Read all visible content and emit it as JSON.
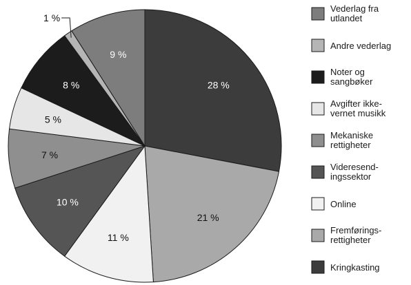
{
  "chart_data": {
    "type": "pie",
    "title": "",
    "slices": [
      {
        "label": "Kringkasting",
        "value": 28,
        "value_label": "28 %",
        "color": "#3c3c3c",
        "text_color": "#ffffff",
        "legend_lines": [
          "Kringkasting"
        ]
      },
      {
        "label": "Fremføringsrettigheter",
        "value": 21,
        "value_label": "21 %",
        "color": "#a9a9a9",
        "text_color": "#111111",
        "legend_lines": [
          "Fremførings-",
          "rettigheter"
        ]
      },
      {
        "label": "Online",
        "value": 11,
        "value_label": "11 %",
        "color": "#f1f1f1",
        "text_color": "#111111",
        "legend_lines": [
          "Online"
        ]
      },
      {
        "label": "Videresendingssektor",
        "value": 10,
        "value_label": "10 %",
        "color": "#555555",
        "text_color": "#ffffff",
        "legend_lines": [
          "Videresend-",
          "ingssektor"
        ]
      },
      {
        "label": "Mekaniske rettigheter",
        "value": 7,
        "value_label": "7 %",
        "color": "#8f8f8f",
        "text_color": "#111111",
        "legend_lines": [
          "Mekaniske",
          "rettigheter"
        ]
      },
      {
        "label": "Avgifter ikke-vernet musikk",
        "value": 5,
        "value_label": "5 %",
        "color": "#e6e6e6",
        "text_color": "#111111",
        "legend_lines": [
          "Avgifter ikke-",
          "vernet musikk"
        ]
      },
      {
        "label": "Noter og sangbøker",
        "value": 8,
        "value_label": "8 %",
        "color": "#1c1c1c",
        "text_color": "#ffffff",
        "legend_lines": [
          "Noter og",
          "sangbøker"
        ]
      },
      {
        "label": "Andre vederlag",
        "value": 1,
        "value_label": "1 %",
        "color": "#b5b5b5",
        "text_color": "#111111",
        "legend_lines": [
          "Andre vederlag"
        ]
      },
      {
        "label": "Vederlag fra utlandet",
        "value": 9,
        "value_label": "9 %",
        "color": "#7d7d7d",
        "text_color": "#ffffff",
        "legend_lines": [
          "Vederlag fra",
          "utlandet"
        ]
      }
    ],
    "legend_order": [
      8,
      7,
      6,
      5,
      4,
      3,
      2,
      1,
      0
    ],
    "legend_placement": "right",
    "start_angle_deg": 0,
    "direction": "clockwise"
  }
}
